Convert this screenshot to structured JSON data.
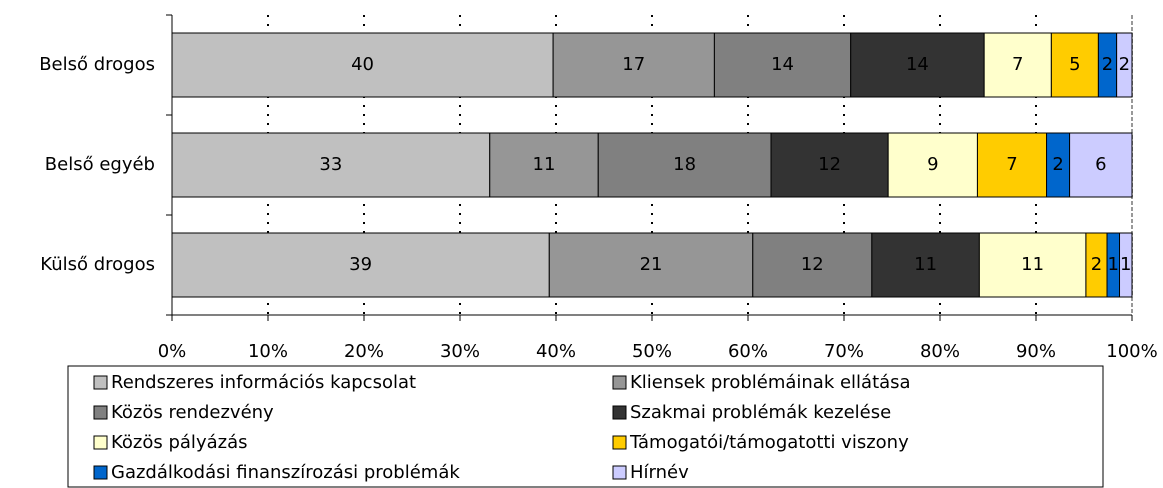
{
  "chart_data": {
    "type": "stacked-barh",
    "categories": [
      "Belső drogos",
      "Belső egyéb",
      "Külső drogos"
    ],
    "series": [
      {
        "name": "Rendszeres információs kapcsolat",
        "color": "#c0c0c0",
        "values": [
          39.7,
          33.1,
          39.3
        ],
        "value_labels": [
          "40",
          "33",
          "39"
        ]
      },
      {
        "name": "Kliensek problémáinak ellátása",
        "color": "#969696",
        "values": [
          16.8,
          11.3,
          21.2
        ],
        "value_labels": [
          "17",
          "11",
          "21"
        ]
      },
      {
        "name": "Közös rendezvény",
        "color": "#808080",
        "values": [
          14.2,
          18.0,
          12.4
        ],
        "value_labels": [
          "14",
          "18",
          "12"
        ]
      },
      {
        "name": "Szakmai problémák kezelése",
        "color": "#333333",
        "values": [
          13.9,
          12.2,
          11.2
        ],
        "value_labels": [
          "14",
          "12",
          "11"
        ]
      },
      {
        "name": "Közös pályázás",
        "color": "#ffffcc",
        "values": [
          7.0,
          9.3,
          11.1
        ],
        "value_labels": [
          "7",
          "9",
          "11"
        ]
      },
      {
        "name": "Támogatói/támogatotti viszony",
        "color": "#ffcc00",
        "values": [
          4.9,
          7.2,
          2.2
        ],
        "value_labels": [
          "5",
          "7",
          "2"
        ]
      },
      {
        "name": "Gazdálkodási finanszírozási problémák",
        "color": "#0066cc",
        "values": [
          1.9,
          2.4,
          1.3
        ],
        "value_labels": [
          "2",
          "2",
          "1"
        ]
      },
      {
        "name": "Hírnév",
        "color": "#ccccff",
        "values": [
          1.6,
          6.5,
          1.3
        ],
        "value_labels": [
          "2",
          "6",
          "1"
        ]
      }
    ],
    "xlim": [
      0,
      100
    ],
    "xticks": [
      {
        "value": 0,
        "label": "0%"
      },
      {
        "value": 10,
        "label": "10%"
      },
      {
        "value": 20,
        "label": "20%"
      },
      {
        "value": 30,
        "label": "30%"
      },
      {
        "value": 40,
        "label": "40%"
      },
      {
        "value": 50,
        "label": "50%"
      },
      {
        "value": 60,
        "label": "60%"
      },
      {
        "value": 70,
        "label": "70%"
      },
      {
        "value": 80,
        "label": "80%"
      },
      {
        "value": 90,
        "label": "90%"
      },
      {
        "value": 100,
        "label": "100%"
      }
    ],
    "grid": true,
    "legend": "bottom"
  }
}
